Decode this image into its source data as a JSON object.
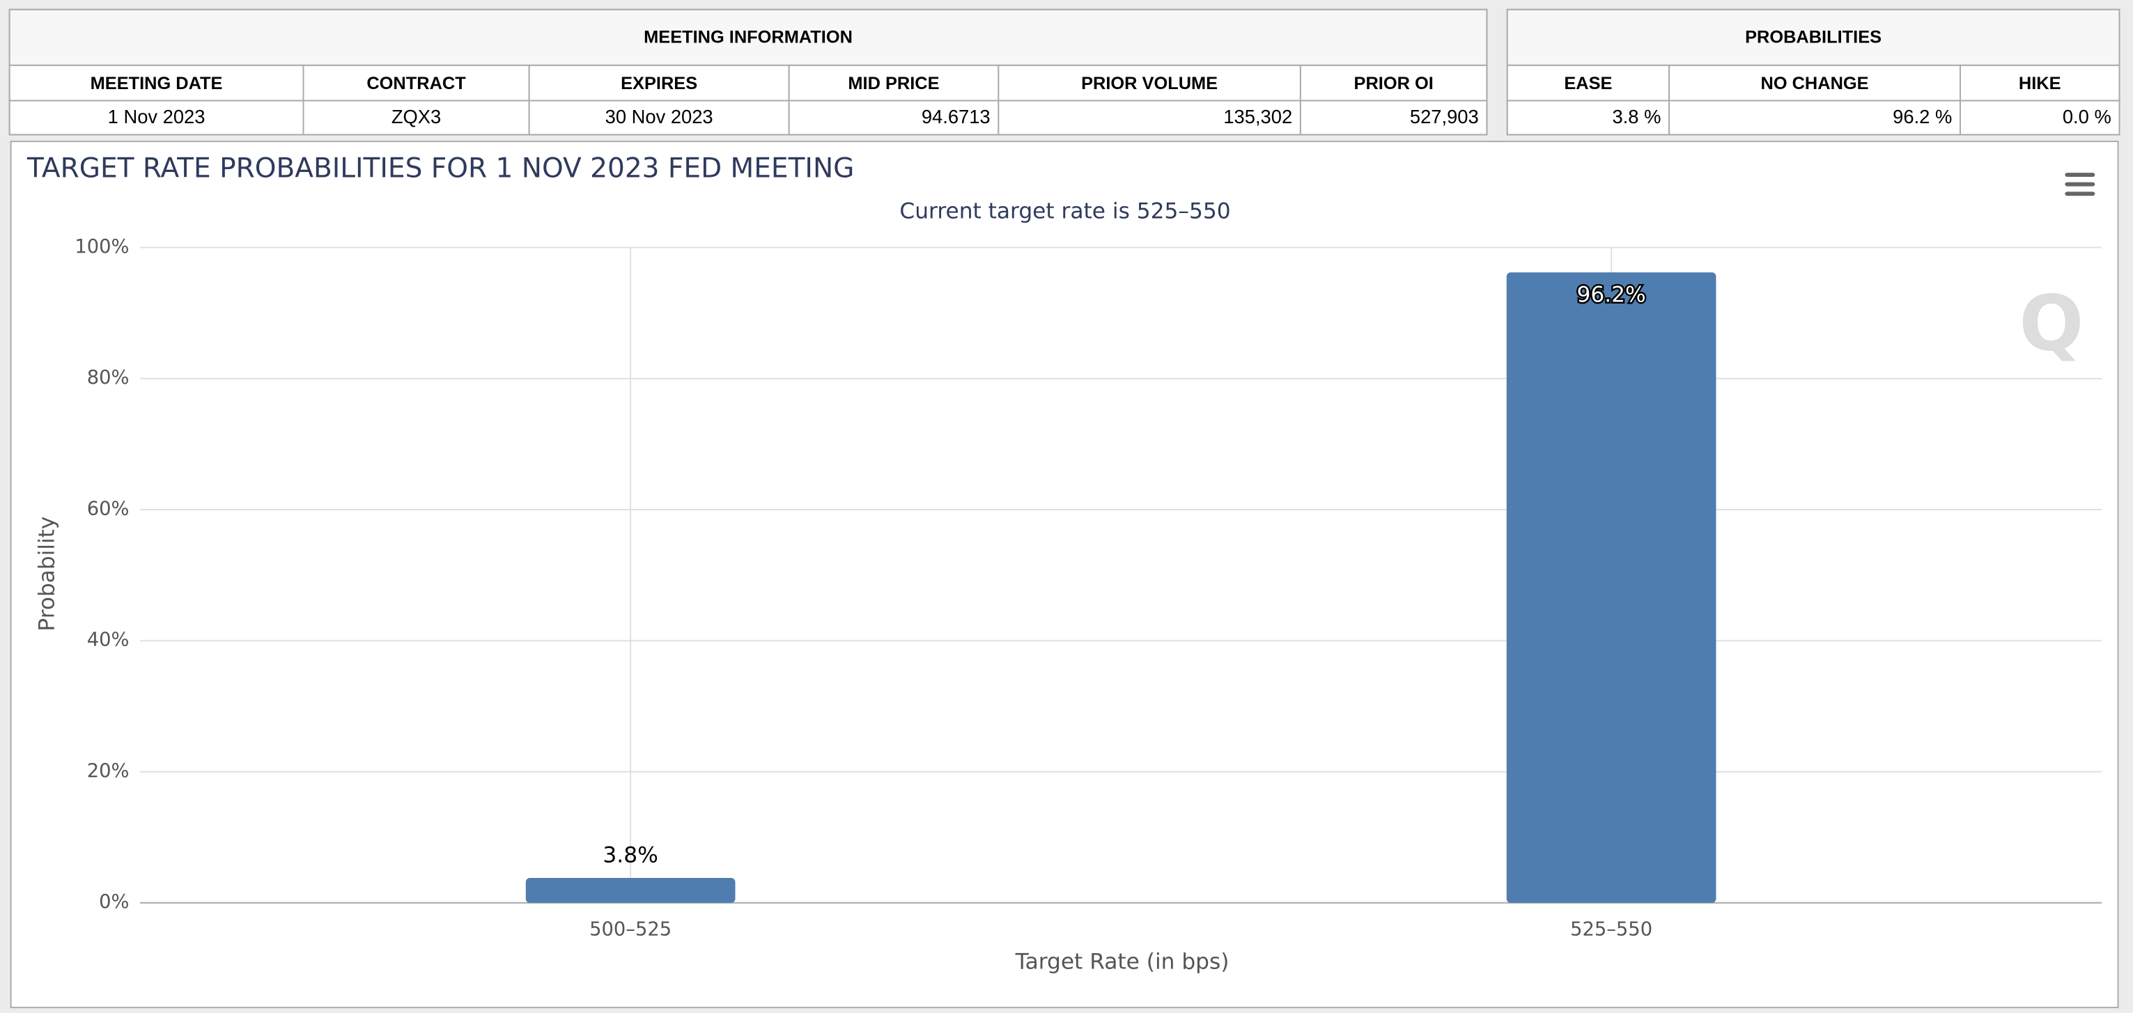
{
  "meeting_table": {
    "title": "MEETING INFORMATION",
    "headers": [
      "MEETING DATE",
      "CONTRACT",
      "EXPIRES",
      "MID PRICE",
      "PRIOR VOLUME",
      "PRIOR OI"
    ],
    "rows": [
      [
        "1 Nov 2023",
        "ZQX3",
        "30 Nov 2023",
        "94.6713",
        "135,302",
        "527,903"
      ]
    ]
  },
  "probabilities_table": {
    "title": "PROBABILITIES",
    "headers": [
      "EASE",
      "NO CHANGE",
      "HIKE"
    ],
    "rows": [
      [
        "3.8 %",
        "96.2 %",
        "0.0 %"
      ]
    ]
  },
  "chart_data": {
    "type": "bar",
    "title": "TARGET RATE PROBABILITIES FOR 1 NOV 2023 FED MEETING",
    "subtitle": "Current target rate is 525–550",
    "x_label": "Target Rate (in bps)",
    "y_label": "Probability",
    "categories": [
      "500–525",
      "525–550"
    ],
    "values": [
      3.8,
      96.2
    ],
    "value_labels": [
      "3.8%",
      "96.2%"
    ],
    "color": "#4f7db0",
    "ylim": [
      0,
      100
    ],
    "yticks": [
      {
        "value": 0,
        "label": "0%"
      },
      {
        "value": 20,
        "label": "20%"
      },
      {
        "value": 40,
        "label": "40%"
      },
      {
        "value": 60,
        "label": "60%"
      },
      {
        "value": 80,
        "label": "80%"
      },
      {
        "value": 100,
        "label": "100%"
      }
    ],
    "grid": true
  }
}
